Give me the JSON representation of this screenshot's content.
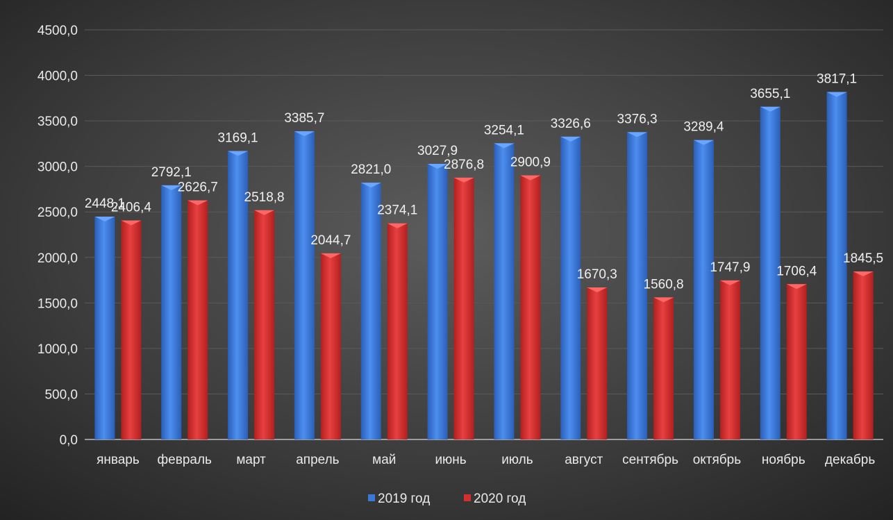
{
  "chart_data": {
    "type": "bar",
    "categories": [
      "январь",
      "февраль",
      "март",
      "апрель",
      "май",
      "июнь",
      "июль",
      "август",
      "сентябрь",
      "октябрь",
      "ноябрь",
      "декабрь"
    ],
    "series": [
      {
        "name": "2019 год",
        "color": "#3a78d8",
        "values": [
          2448.1,
          2792.1,
          3169.1,
          3385.7,
          2821.0,
          3027.9,
          3254.1,
          3326.6,
          3376.3,
          3289.4,
          3655.1,
          3817.1
        ],
        "labels": [
          "2448,1",
          "2792,1",
          "3169,1",
          "3385,7",
          "2821,0",
          "3027,9",
          "3254,1",
          "3326,6",
          "3376,3",
          "3289,4",
          "3655,1",
          "3817,1"
        ]
      },
      {
        "name": "2020 год",
        "color": "#d42f2f",
        "values": [
          2406.4,
          2626.7,
          2518.8,
          2044.7,
          2374.1,
          2876.8,
          2900.9,
          1670.3,
          1560.8,
          1747.9,
          1706.4,
          1845.5
        ],
        "labels": [
          "2406,4",
          "2626,7",
          "2518,8",
          "2044,7",
          "2374,1",
          "2876,8",
          "2900,9",
          "1670,3",
          "1560,8",
          "1747,9",
          "1706,4",
          "1845,5"
        ]
      }
    ],
    "y_ticks": [
      "0,0",
      "500,0",
      "1000,0",
      "1500,0",
      "2000,0",
      "2500,0",
      "3000,0",
      "3500,0",
      "4000,0",
      "4500,0"
    ],
    "ylim": [
      0,
      4500
    ],
    "grid": true,
    "legend_position": "bottom",
    "title": "",
    "xlabel": "",
    "ylabel": ""
  }
}
